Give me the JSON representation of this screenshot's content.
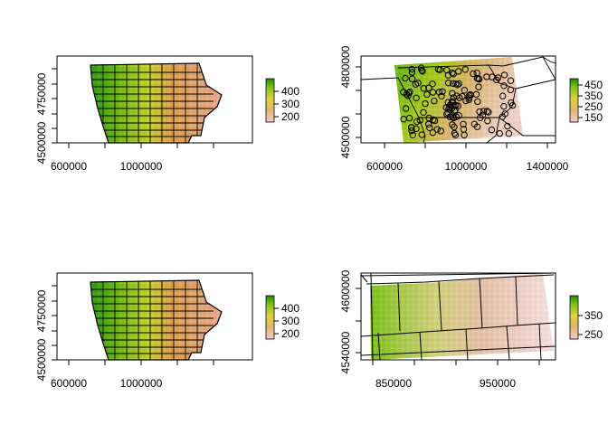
{
  "chart_data": [
    {
      "type": "heatmap",
      "title": "",
      "xlabel": "",
      "ylabel": "",
      "x_ticks": [
        "600000",
        "1000000"
      ],
      "y_ticks": [
        "4500000",
        "4750000"
      ],
      "legend": {
        "ticks": [
          "400",
          "300",
          "200"
        ],
        "min": 150,
        "max": 520,
        "placement": "right"
      },
      "overlay": "county boundaries"
    },
    {
      "type": "heatmap",
      "title": "",
      "xlabel": "",
      "ylabel": "",
      "x_ticks": [
        "600000",
        "1000000",
        "1400000"
      ],
      "y_ticks": [
        "4500000",
        "4800000"
      ],
      "legend": {
        "ticks": [
          "450",
          "350",
          "250",
          "150"
        ],
        "min": 120,
        "max": 500,
        "placement": "right"
      },
      "overlay": "state boundaries and point locations (open circles)"
    },
    {
      "type": "heatmap",
      "title": "",
      "xlabel": "",
      "ylabel": "",
      "x_ticks": [
        "600000",
        "1000000"
      ],
      "y_ticks": [
        "4500000",
        "4750000"
      ],
      "legend": {
        "ticks": [
          "400",
          "300",
          "200"
        ],
        "min": 150,
        "max": 520,
        "placement": "right"
      },
      "overlay": "county boundaries"
    },
    {
      "type": "heatmap",
      "title": "",
      "xlabel": "",
      "ylabel": "",
      "x_ticks": [
        "850000",
        "950000"
      ],
      "y_ticks": [
        "4540000",
        "4600000"
      ],
      "legend": {
        "ticks": [
          "350",
          "250"
        ],
        "min": 200,
        "max": 420,
        "placement": "right"
      },
      "overlay": "county boundaries (zoomed)"
    }
  ]
}
